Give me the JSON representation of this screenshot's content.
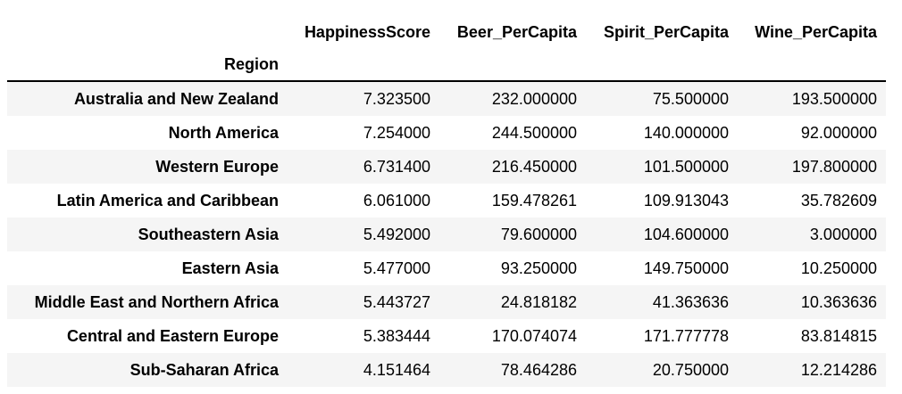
{
  "table": {
    "index_name": "Region",
    "columns": [
      "HappinessScore",
      "Beer_PerCapita",
      "Spirit_PerCapita",
      "Wine_PerCapita"
    ],
    "rows": [
      {
        "region": "Australia and New Zealand",
        "values": [
          "7.323500",
          "232.000000",
          "75.500000",
          "193.500000"
        ]
      },
      {
        "region": "North America",
        "values": [
          "7.254000",
          "244.500000",
          "140.000000",
          "92.000000"
        ]
      },
      {
        "region": "Western Europe",
        "values": [
          "6.731400",
          "216.450000",
          "101.500000",
          "197.800000"
        ]
      },
      {
        "region": "Latin America and Caribbean",
        "values": [
          "6.061000",
          "159.478261",
          "109.913043",
          "35.782609"
        ]
      },
      {
        "region": "Southeastern Asia",
        "values": [
          "5.492000",
          "79.600000",
          "104.600000",
          "3.000000"
        ]
      },
      {
        "region": "Eastern Asia",
        "values": [
          "5.477000",
          "93.250000",
          "149.750000",
          "10.250000"
        ]
      },
      {
        "region": "Middle East and Northern Africa",
        "values": [
          "5.443727",
          "24.818182",
          "41.363636",
          "10.363636"
        ]
      },
      {
        "region": "Central and Eastern Europe",
        "values": [
          "5.383444",
          "170.074074",
          "171.777778",
          "83.814815"
        ]
      },
      {
        "region": "Sub-Saharan Africa",
        "values": [
          "4.151464",
          "78.464286",
          "20.750000",
          "12.214286"
        ]
      }
    ]
  },
  "colors": {
    "stripe": "#f5f5f5",
    "header_rule": "#000000"
  }
}
